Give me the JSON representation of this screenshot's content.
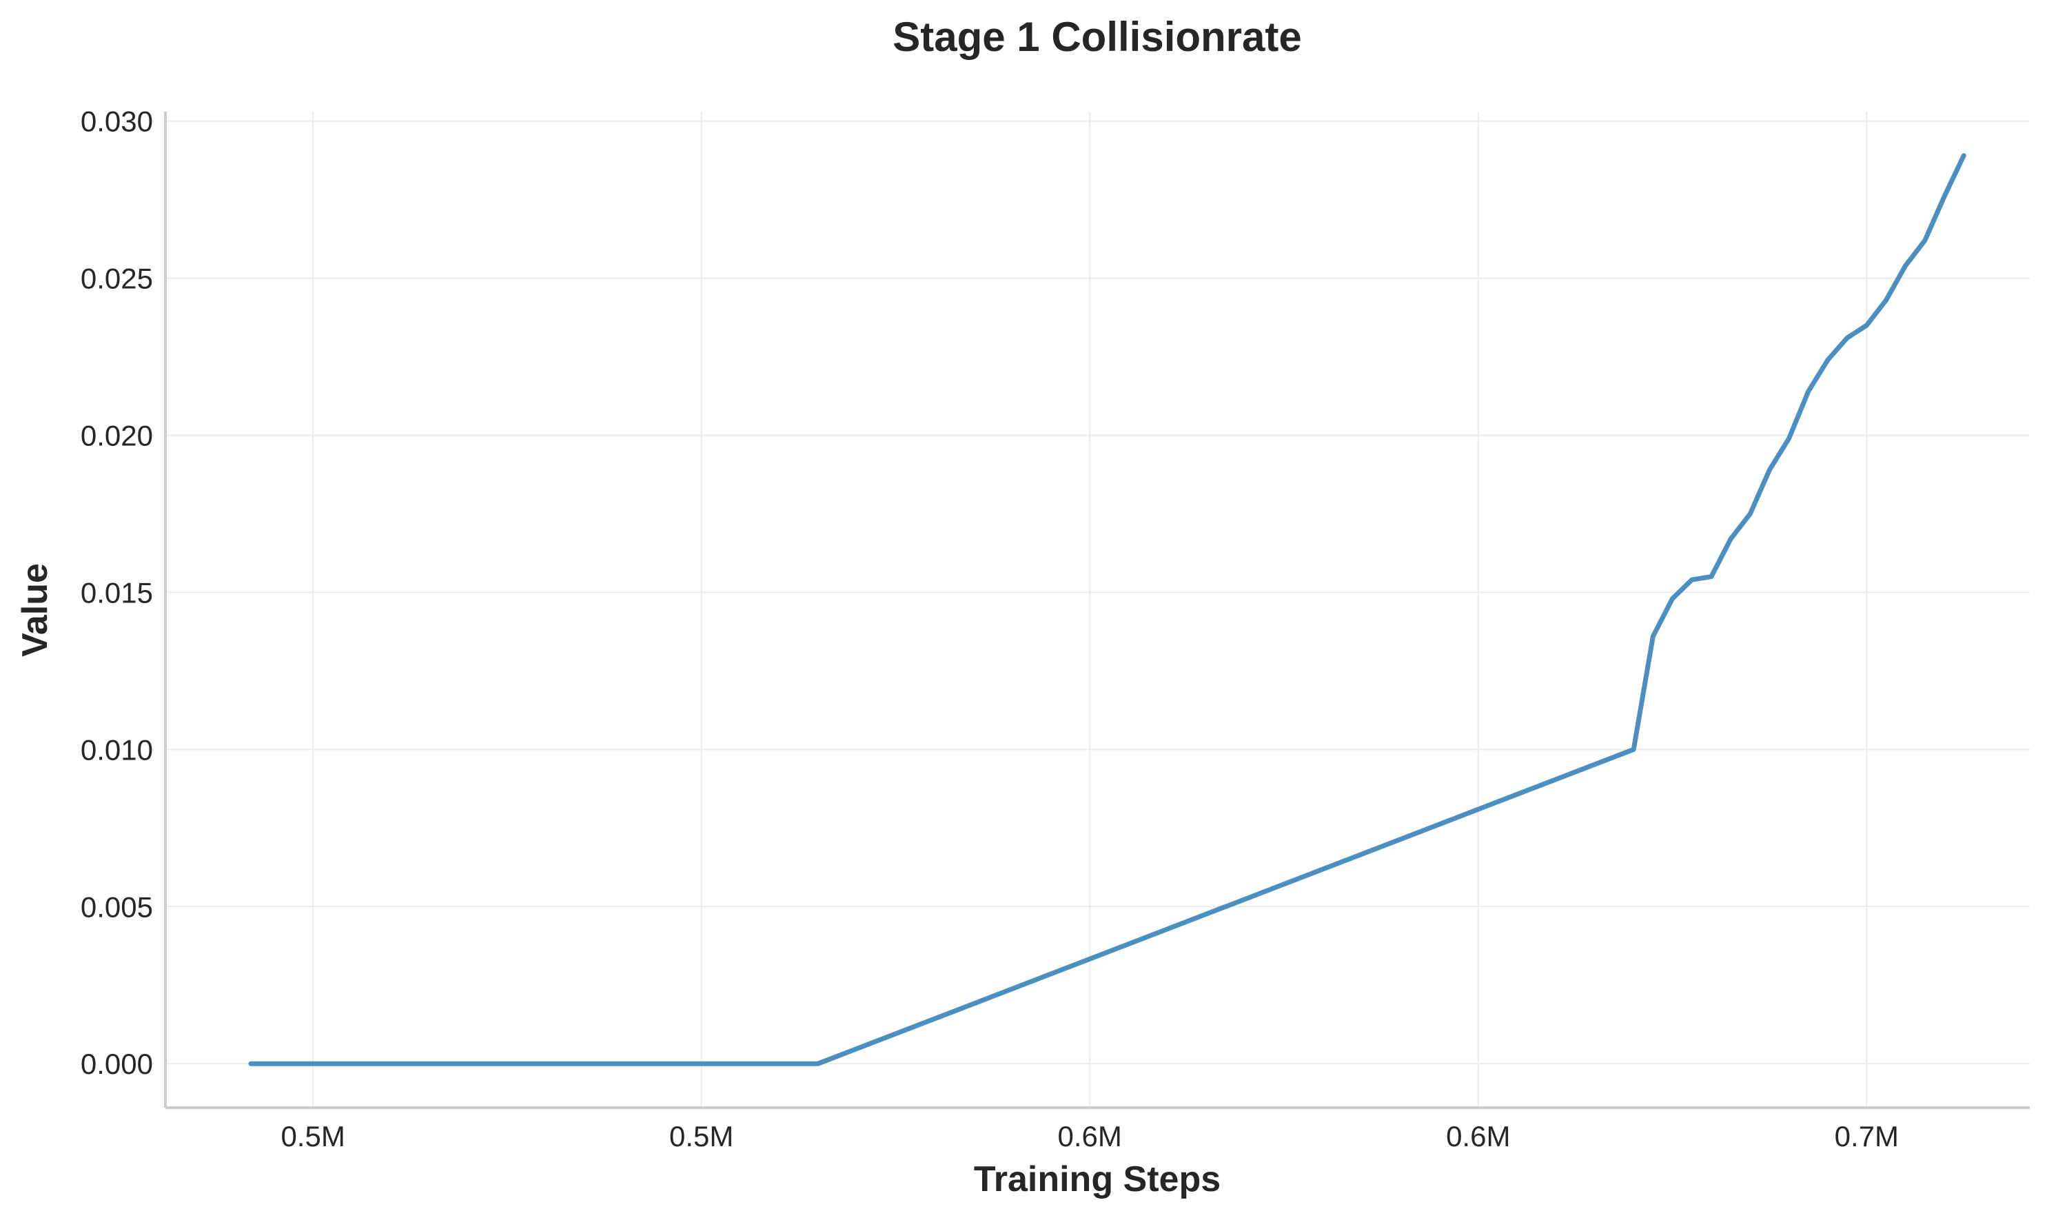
{
  "chart_data": {
    "type": "line",
    "title": "Stage 1 Collisionrate",
    "xlabel": "Training Steps",
    "ylabel": "Value",
    "xlim": [
      461000,
      701000
    ],
    "ylim": [
      -0.0014,
      0.0303
    ],
    "x_ticks": [
      {
        "value": 480000,
        "label": "0.5M"
      },
      {
        "value": 530000,
        "label": "0.5M"
      },
      {
        "value": 580000,
        "label": "0.6M"
      },
      {
        "value": 630000,
        "label": "0.6M"
      },
      {
        "value": 680000,
        "label": "0.7M"
      }
    ],
    "y_ticks": [
      {
        "value": 0.0,
        "label": "0.000"
      },
      {
        "value": 0.005,
        "label": "0.005"
      },
      {
        "value": 0.01,
        "label": "0.010"
      },
      {
        "value": 0.015,
        "label": "0.015"
      },
      {
        "value": 0.02,
        "label": "0.020"
      },
      {
        "value": 0.025,
        "label": "0.025"
      },
      {
        "value": 0.03,
        "label": "0.030"
      }
    ],
    "grid": true,
    "series": [
      {
        "color": "#4a8fc0",
        "x": [
          472000,
          545000,
          650000,
          652500,
          655000,
          657500,
          660000,
          662500,
          665000,
          667500,
          670000,
          672500,
          675000,
          677500,
          680000,
          682500,
          685000,
          687500,
          690000,
          692500
        ],
        "y": [
          0.0,
          0.0,
          0.01,
          0.0136,
          0.0148,
          0.0154,
          0.0155,
          0.0167,
          0.0175,
          0.0189,
          0.0199,
          0.0214,
          0.0224,
          0.0231,
          0.0235,
          0.0243,
          0.0254,
          0.0262,
          0.0276,
          0.0289
        ]
      }
    ]
  }
}
